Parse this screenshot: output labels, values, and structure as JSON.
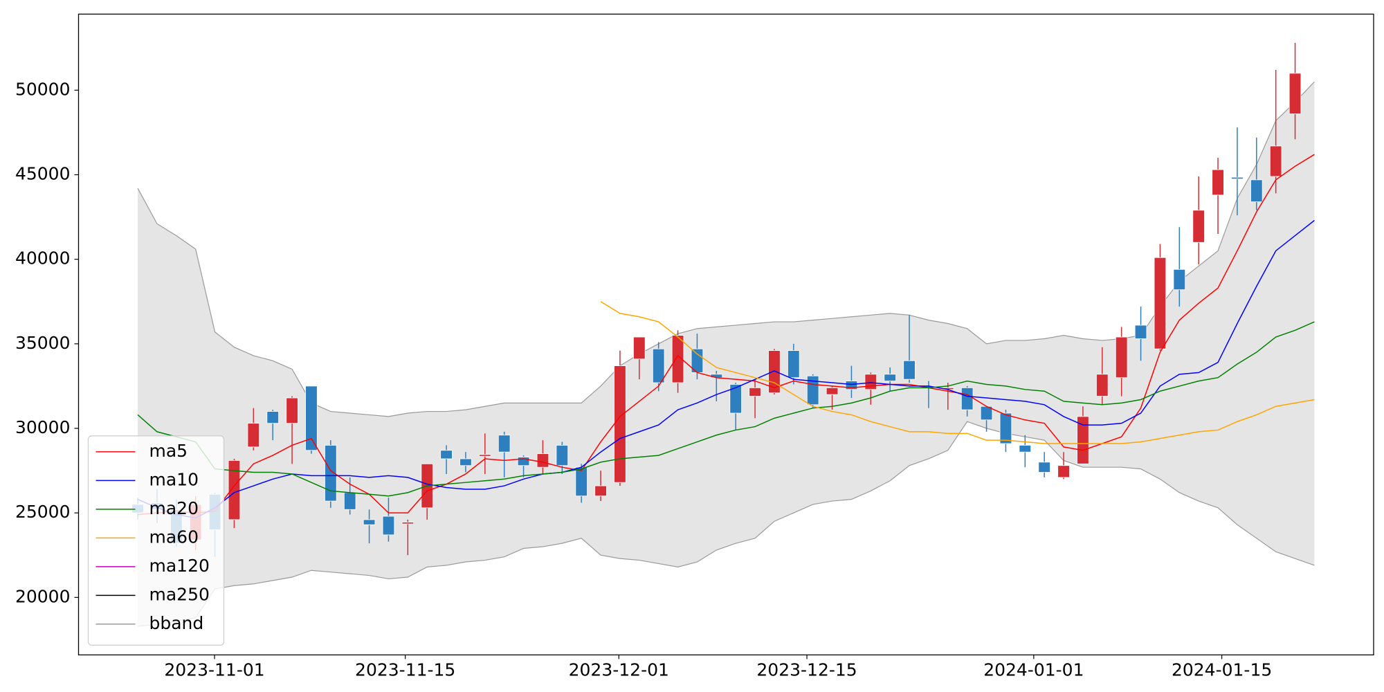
{
  "chart_data": {
    "type": "candlestick",
    "xlim": [
      -3.07,
      64.07
    ],
    "xticks": [
      {
        "value": 3.98,
        "label": "2023-11-01"
      },
      {
        "value": 13.87,
        "label": "2023-11-15"
      },
      {
        "value": 24.94,
        "label": "2023-12-01"
      },
      {
        "value": 34.69,
        "label": "2023-12-15"
      },
      {
        "value": 46.45,
        "label": "2024-01-01"
      },
      {
        "value": 56.2,
        "label": "2024-01-15"
      }
    ],
    "ylim": [
      16600,
      54500
    ],
    "yticks": [
      20000,
      25000,
      30000,
      35000,
      40000,
      45000,
      50000
    ],
    "legend": "lower left",
    "up_color": "#d62d35",
    "down_color": "#2e7fbf",
    "open": [
      25500,
      25600,
      25200,
      23400,
      26100,
      24600,
      28900,
      31000,
      30300,
      32500,
      29000,
      26200,
      24600,
      24800,
      24350,
      25300,
      28700,
      28200,
      28350,
      29600,
      28300,
      27700,
      29000,
      27700,
      26000,
      26800,
      34100,
      34700,
      32700,
      34700,
      33200,
      32600,
      31900,
      32100,
      34600,
      33100,
      32000,
      32800,
      32300,
      33200,
      34000,
      32500,
      32300,
      32400,
      31300,
      30900,
      29000,
      28000,
      27100,
      27900,
      31900,
      33000,
      36100,
      34700,
      39400,
      41000,
      43800,
      44850,
      44700,
      44900,
      48600,
      null
    ],
    "high": [
      25900,
      26400,
      25800,
      26000,
      26200,
      28200,
      31200,
      31100,
      31900,
      32500,
      29300,
      27100,
      25200,
      25900,
      24600,
      27900,
      29000,
      28600,
      29700,
      29800,
      28400,
      29300,
      29200,
      27900,
      27500,
      34600,
      35400,
      35100,
      35800,
      35600,
      33400,
      32700,
      32900,
      34700,
      35000,
      33200,
      32500,
      33700,
      33300,
      33600,
      36700,
      32800,
      32700,
      32500,
      31300,
      31100,
      29600,
      28600,
      28600,
      31300,
      34800,
      36000,
      37200,
      40900,
      41900,
      44900,
      46000,
      47800,
      47200,
      51200,
      52800,
      null
    ],
    "low": [
      24600,
      24400,
      23000,
      22800,
      22400,
      24100,
      28700,
      29300,
      27900,
      28500,
      25300,
      24900,
      23200,
      23300,
      22500,
      24600,
      27300,
      27400,
      27300,
      27100,
      27100,
      27300,
      27300,
      25600,
      25700,
      26600,
      32900,
      32200,
      32100,
      32900,
      31600,
      29900,
      30600,
      32000,
      32600,
      31200,
      31100,
      31800,
      31400,
      32200,
      32700,
      31200,
      31100,
      30700,
      29800,
      28600,
      27700,
      27100,
      27000,
      27900,
      31400,
      31900,
      34000,
      34600,
      37200,
      39700,
      41500,
      42600,
      42900,
      43900,
      47100,
      null
    ],
    "close": [
      25000,
      25200,
      23200,
      25500,
      24000,
      28100,
      30300,
      30300,
      31800,
      28700,
      25700,
      25200,
      24300,
      23700,
      24450,
      27900,
      28200,
      27800,
      28450,
      28600,
      27800,
      28500,
      27800,
      26000,
      26600,
      33700,
      35400,
      32700,
      35500,
      33300,
      33000,
      30900,
      32400,
      34600,
      33000,
      31400,
      32400,
      32300,
      33200,
      32800,
      32900,
      32400,
      32400,
      31100,
      30500,
      29100,
      28600,
      27400,
      27800,
      30700,
      33200,
      35400,
      35300,
      40100,
      38200,
      42900,
      45300,
      44750,
      43400,
      46700,
      51000,
      null
    ],
    "series": [
      {
        "name": "ma5",
        "color": "#ff0000",
        "values": [
          24900,
          25000,
          25100,
          25000,
          25100,
          26600,
          27900,
          28400,
          29000,
          29400,
          27500,
          26700,
          26100,
          25000,
          25000,
          26300,
          26700,
          27300,
          28200,
          28100,
          28200,
          28000,
          27700,
          27500,
          29200,
          30700,
          31600,
          32500,
          34300,
          33300,
          33000,
          32900,
          32800,
          32400,
          32800,
          32600,
          32500,
          32400,
          32500,
          32600,
          32600,
          32400,
          32200,
          32000,
          31300,
          30800,
          30500,
          30300,
          28900,
          28700,
          29100,
          29500,
          31200,
          34500,
          36400,
          37400,
          38300,
          40500,
          42800,
          44700,
          45500,
          46200
        ]
      },
      {
        "name": "ma10",
        "color": "#0000ff",
        "values": [
          25800,
          25300,
          24900,
          24700,
          25300,
          26200,
          26600,
          27000,
          27300,
          27200,
          27200,
          27200,
          27100,
          27200,
          27100,
          26700,
          26500,
          26400,
          26400,
          26600,
          27000,
          27300,
          27400,
          27700,
          28600,
          29400,
          29800,
          30200,
          31100,
          31500,
          32000,
          32400,
          32900,
          33400,
          32900,
          32800,
          32700,
          32600,
          32700,
          32600,
          32500,
          32500,
          32300,
          31900,
          31800,
          31700,
          31600,
          31400,
          30700,
          30200,
          30200,
          30300,
          30900,
          32500,
          33200,
          33300,
          33900,
          36200,
          38400,
          40500,
          41400,
          42300
        ]
      },
      {
        "name": "ma20",
        "color": "#008000",
        "values": [
          30800,
          29800,
          29500,
          29200,
          27600,
          27500,
          27400,
          27400,
          27300,
          26800,
          26300,
          26200,
          26100,
          26000,
          26200,
          26600,
          26700,
          26800,
          26900,
          27000,
          27200,
          27300,
          27400,
          27600,
          28000,
          28200,
          28300,
          28400,
          28800,
          29200,
          29600,
          29900,
          30100,
          30600,
          30900,
          31200,
          31300,
          31500,
          31800,
          32200,
          32400,
          32400,
          32500,
          32800,
          32600,
          32500,
          32300,
          32200,
          31600,
          31500,
          31400,
          31500,
          31700,
          32200,
          32500,
          32800,
          33000,
          33800,
          34500,
          35400,
          35800,
          36300
        ]
      },
      {
        "name": "ma60",
        "color": "#ffa500",
        "values": [
          null,
          null,
          null,
          null,
          null,
          null,
          null,
          null,
          null,
          null,
          null,
          null,
          null,
          null,
          null,
          null,
          null,
          null,
          null,
          null,
          null,
          null,
          null,
          null,
          37500,
          36800,
          36600,
          36300,
          35400,
          34400,
          33600,
          33300,
          33000,
          32700,
          32000,
          31300,
          31000,
          30800,
          30400,
          30100,
          29800,
          29800,
          29700,
          29700,
          29300,
          29300,
          29200,
          29100,
          29100,
          29100,
          29100,
          29100,
          29200,
          29400,
          29600,
          29800,
          29900,
          30400,
          30800,
          31300,
          31500,
          31700
        ]
      },
      {
        "name": "ma120",
        "color": "#bf00bf"
      },
      {
        "name": "ma250",
        "color": "#000000"
      },
      {
        "name": "bband",
        "color": "#999999",
        "fill": "#e5e5e5",
        "upper": [
          44200,
          42100,
          41400,
          40600,
          35700,
          34800,
          34300,
          34000,
          33500,
          31500,
          31000,
          30900,
          30800,
          30700,
          30900,
          31000,
          31000,
          31100,
          31300,
          31500,
          31500,
          31500,
          31500,
          31500,
          32500,
          33700,
          34400,
          35000,
          35600,
          35900,
          36000,
          36100,
          36200,
          36300,
          36300,
          36400,
          36500,
          36600,
          36700,
          36800,
          36700,
          36400,
          36200,
          35900,
          35000,
          35200,
          35200,
          35300,
          35500,
          35300,
          35200,
          35300,
          35500,
          37200,
          38700,
          39600,
          40500,
          43600,
          45600,
          48200,
          49300,
          50500
        ],
        "lower": [
          18300,
          18400,
          18600,
          18800,
          20500,
          20700,
          20800,
          21000,
          21200,
          21600,
          21500,
          21400,
          21300,
          21100,
          21200,
          21800,
          21900,
          22100,
          22200,
          22400,
          22900,
          23000,
          23200,
          23500,
          22500,
          22300,
          22200,
          22000,
          21800,
          22100,
          22800,
          23200,
          23500,
          24500,
          25000,
          25500,
          25700,
          25800,
          26300,
          26900,
          27800,
          28200,
          28700,
          30400,
          30000,
          29700,
          29500,
          29300,
          28100,
          27700,
          27700,
          27700,
          27600,
          27000,
          26200,
          25700,
          25300,
          24300,
          23500,
          22700,
          22300,
          21900
        ]
      }
    ]
  }
}
